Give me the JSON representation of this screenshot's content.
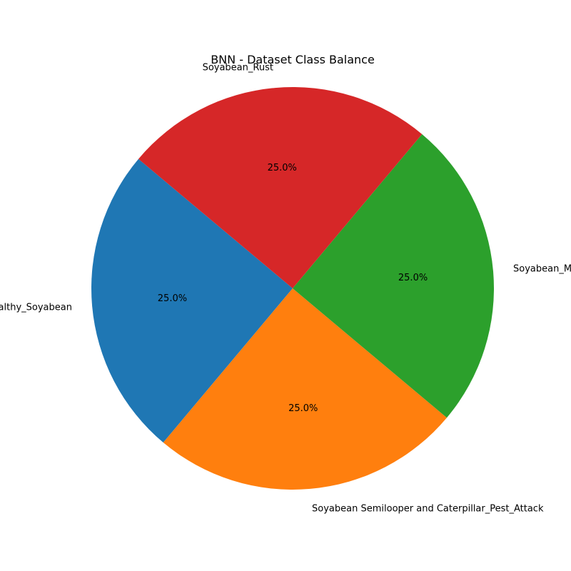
{
  "chart_data": {
    "type": "pie",
    "title": "BNN - Dataset Class Balance",
    "categories": [
      "Healthy_Soyabean",
      "Soyabean Semilooper and Caterpillar_Pest_Attack",
      "Soyabean_Mosaic",
      "Soyabean_Rust"
    ],
    "values": [
      25.0,
      25.0,
      25.0,
      25.0
    ],
    "percent_labels": [
      "25.0%",
      "25.0%",
      "25.0%",
      "25.0%"
    ],
    "colors": [
      "#1f77b4",
      "#ff7f0e",
      "#2ca02c",
      "#d62728"
    ],
    "start_angle_deg": 140,
    "direction": "counterclockwise"
  }
}
